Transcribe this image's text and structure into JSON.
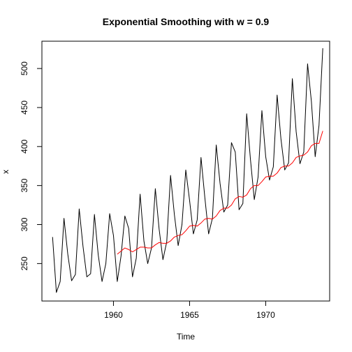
{
  "chart_data": {
    "type": "line",
    "title": "Exponential Smoothing with w = 0.9",
    "xlabel": "Time",
    "ylabel": "x",
    "xlim": [
      1955.3,
      1974.2
    ],
    "ylim": [
      202,
      535
    ],
    "xticks": [
      1960,
      1965,
      1970
    ],
    "yticks": [
      250,
      300,
      350,
      400,
      450,
      500
    ],
    "grid": false,
    "series": [
      {
        "color": "#000000",
        "x": [
          1956.0,
          1956.25,
          1956.5,
          1956.75,
          1957.0,
          1957.25,
          1957.5,
          1957.75,
          1958.0,
          1958.25,
          1958.5,
          1958.75,
          1959.0,
          1959.25,
          1959.5,
          1959.75,
          1960.0,
          1960.25,
          1960.5,
          1960.75,
          1961.0,
          1961.25,
          1961.5,
          1961.75,
          1962.0,
          1962.25,
          1962.5,
          1962.75,
          1963.0,
          1963.25,
          1963.5,
          1963.75,
          1964.0,
          1964.25,
          1964.5,
          1964.75,
          1965.0,
          1965.25,
          1965.5,
          1965.75,
          1966.0,
          1966.25,
          1966.5,
          1966.75,
          1967.0,
          1967.25,
          1967.5,
          1967.75,
          1968.0,
          1968.25,
          1968.5,
          1968.75,
          1969.0,
          1969.25,
          1969.5,
          1969.75,
          1970.0,
          1970.25,
          1970.5,
          1970.75,
          1971.0,
          1971.25,
          1971.5,
          1971.75,
          1972.0,
          1972.25,
          1972.5,
          1972.75,
          1973.0,
          1973.25,
          1973.5,
          1973.75
        ],
        "values": [
          284,
          213,
          227,
          308,
          262,
          228,
          236,
          320,
          272,
          233,
          237,
          313,
          261,
          227,
          250,
          314,
          286,
          227,
          260,
          311,
          295,
          233,
          257,
          339,
          279,
          250,
          270,
          346,
          294,
          255,
          278,
          363,
          313,
          273,
          300,
          370,
          331,
          288,
          306,
          386,
          335,
          288,
          308,
          402,
          353,
          316,
          325,
          405,
          393,
          319,
          327,
          442,
          383,
          332,
          361,
          446,
          387,
          357,
          374,
          466,
          410,
          370,
          379,
          487,
          419,
          378,
          393,
          506,
          458,
          387,
          427,
          526
        ]
      },
      {
        "color": "#ff0000",
        "x": [
          1960.25,
          1960.5,
          1960.75,
          1961.0,
          1961.25,
          1961.5,
          1961.75,
          1962.0,
          1962.25,
          1962.5,
          1962.75,
          1963.0,
          1963.25,
          1963.5,
          1963.75,
          1964.0,
          1964.25,
          1964.5,
          1964.75,
          1965.0,
          1965.25,
          1965.5,
          1965.75,
          1966.0,
          1966.25,
          1966.5,
          1966.75,
          1967.0,
          1967.25,
          1967.5,
          1967.75,
          1968.0,
          1968.25,
          1968.5,
          1968.75,
          1969.0,
          1969.25,
          1969.5,
          1969.75,
          1970.0,
          1970.25,
          1970.5,
          1970.75,
          1971.0,
          1971.25,
          1971.5,
          1971.75,
          1972.0,
          1972.25,
          1972.5,
          1972.75,
          1973.0,
          1973.25,
          1973.5,
          1973.75
        ],
        "values": [
          262,
          266,
          270,
          268,
          265,
          268,
          271,
          271,
          270,
          270,
          274,
          277,
          276,
          276,
          279,
          284,
          286,
          287,
          292,
          298,
          299,
          298,
          302,
          307,
          308,
          307,
          311,
          318,
          321,
          321,
          325,
          333,
          336,
          335,
          338,
          346,
          350,
          350,
          355,
          361,
          362,
          362,
          366,
          373,
          375,
          375,
          379,
          386,
          388,
          389,
          393,
          401,
          404,
          404,
          420
        ]
      }
    ]
  }
}
